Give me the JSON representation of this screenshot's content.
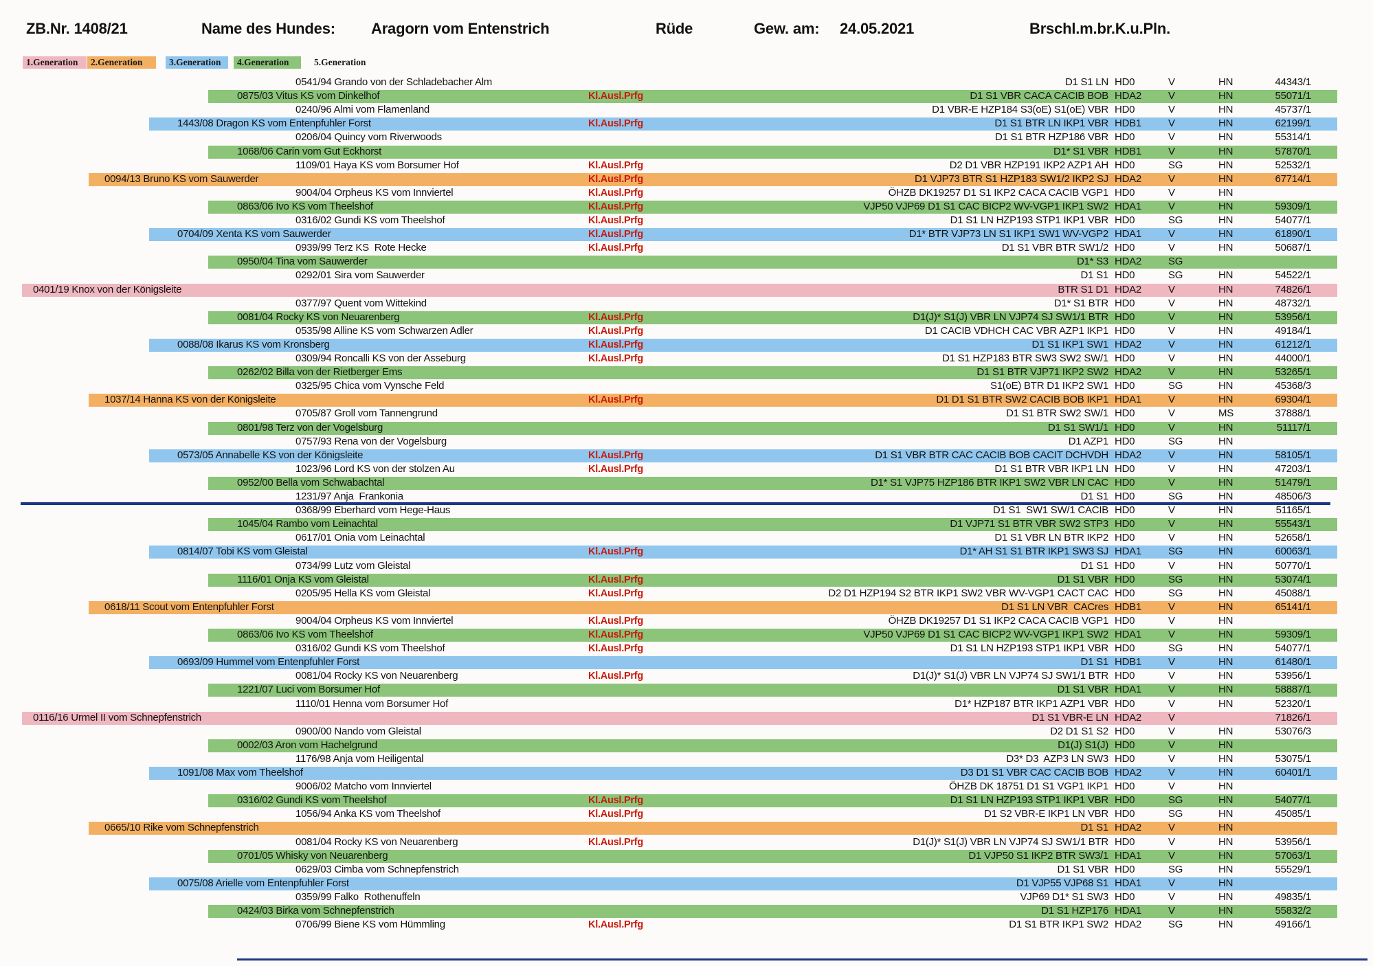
{
  "header": {
    "zb_number": "ZB.Nr. 1408/21",
    "name_label": "Name des Hundes:",
    "dog_name": "Aragorn vom Entenstrich",
    "sex": "Rüde",
    "birth_label": "Gew. am:",
    "birth_date": "24.05.2021",
    "coat_code": "Brschl.m.br.K.u.Pln."
  },
  "legend": [
    {
      "label": "1.Generation",
      "color": "#efb7c0"
    },
    {
      "label": "2.Generation",
      "color": "#f3b063"
    },
    {
      "label": "3.Generation",
      "color": "#90c6ee"
    },
    {
      "label": "4.Generation",
      "color": "#8cc47a"
    },
    {
      "label": "5.Generation",
      "color": "transparent"
    }
  ],
  "generation_colors": {
    "1": "#efb7c0",
    "2": "#f3b063",
    "3": "#90c6ee",
    "4": "#8cc47a"
  },
  "ausland_label": "Kl.Ausl.Prfg",
  "rows": [
    {
      "gen": 5,
      "name": "0541/94 Grando von der Schladebacher Alm",
      "kap": false,
      "scores": "D1 S1 LN",
      "hd": "HD0",
      "rating": "V",
      "registry": "HN",
      "number": "44343/1"
    },
    {
      "gen": 4,
      "name": "0875/03 Vitus KS vom Dinkelhof",
      "kap": true,
      "scores": "D1 S1 VBR CACA CACIB BOB",
      "hd": "HDA2",
      "rating": "V",
      "registry": "HN",
      "number": "55071/1"
    },
    {
      "gen": 5,
      "name": "0240/96 Almi vom Flamenland",
      "kap": false,
      "scores": "D1 VBR-E HZP184 S3(oE) S1(oE) VBR",
      "hd": "HD0",
      "rating": "V",
      "registry": "HN",
      "number": "45737/1"
    },
    {
      "gen": 3,
      "name": "1443/08 Dragon KS vom Entenpfuhler Forst",
      "kap": true,
      "scores": "D1 S1 BTR LN IKP1 VBR",
      "hd": "HDB1",
      "rating": "V",
      "registry": "HN",
      "number": "62199/1"
    },
    {
      "gen": 5,
      "name": "0206/04 Quincy vom Riverwoods",
      "kap": false,
      "scores": "D1 S1 BTR HZP186 VBR",
      "hd": "HD0",
      "rating": "V",
      "registry": "HN",
      "number": "55314/1"
    },
    {
      "gen": 4,
      "name": "1068/06 Carin vom Gut Eckhorst",
      "kap": false,
      "scores": "D1* S1 VBR",
      "hd": "HDB1",
      "rating": "V",
      "registry": "HN",
      "number": "57870/1"
    },
    {
      "gen": 5,
      "name": "1109/01 Haya KS vom Borsumer Hof",
      "kap": true,
      "scores": "D2 D1 VBR HZP191 IKP2 AZP1 AH",
      "hd": "HD0",
      "rating": "SG",
      "registry": "HN",
      "number": "52532/1"
    },
    {
      "gen": 2,
      "name": "0094/13 Bruno KS vom Sauwerder",
      "kap": true,
      "scores": "D1 VJP73 BTR S1 HZP183 SW1/2 IKP2 SJ",
      "hd": "HDA2",
      "rating": "V",
      "registry": "HN",
      "number": "67714/1"
    },
    {
      "gen": 5,
      "name": "9004/04 Orpheus KS vom Innviertel",
      "kap": true,
      "scores": "ÖHZB DK19257 D1 S1 IKP2 CACA CACIB VGP1",
      "hd": "HD0",
      "rating": "V",
      "registry": "HN",
      "number": ""
    },
    {
      "gen": 4,
      "name": "0863/06 Ivo KS vom Theelshof",
      "kap": true,
      "scores": "VJP50 VJP69 D1 S1 CAC BICP2 WV-VGP1 IKP1 SW2",
      "hd": "HDA1",
      "rating": "V",
      "registry": "HN",
      "number": "59309/1"
    },
    {
      "gen": 5,
      "name": "0316/02 Gundi KS vom Theelshof",
      "kap": true,
      "scores": "D1 S1 LN HZP193 STP1 IKP1 VBR",
      "hd": "HD0",
      "rating": "SG",
      "registry": "HN",
      "number": "54077/1"
    },
    {
      "gen": 3,
      "name": "0704/09 Xenta KS vom Sauwerder",
      "kap": true,
      "scores": "D1* BTR VJP73 LN S1 IKP1 SW1 WV-VGP2",
      "hd": "HDA1",
      "rating": "V",
      "registry": "HN",
      "number": "61890/1"
    },
    {
      "gen": 5,
      "name": "0939/99 Terz KS  Rote Hecke",
      "kap": true,
      "scores": "D1 S1 VBR BTR SW1/2",
      "hd": "HD0",
      "rating": "V",
      "registry": "HN",
      "number": "50687/1"
    },
    {
      "gen": 4,
      "name": "0950/04 Tina vom Sauwerder",
      "kap": false,
      "scores": "D1* S3",
      "hd": "HDA2",
      "rating": "SG",
      "registry": "",
      "number": ""
    },
    {
      "gen": 5,
      "name": "0292/01 Sira vom Sauwerder",
      "kap": false,
      "scores": "D1 S1",
      "hd": "HD0",
      "rating": "SG",
      "registry": "HN",
      "number": "54522/1"
    },
    {
      "gen": 1,
      "name": "0401/19 Knox von der Königsleite",
      "kap": false,
      "scores": "BTR S1 D1",
      "hd": "HDA2",
      "rating": "V",
      "registry": "HN",
      "number": "74826/1"
    },
    {
      "gen": 5,
      "name": "0377/97 Quent vom Wittekind",
      "kap": false,
      "scores": "D1* S1 BTR",
      "hd": "HD0",
      "rating": "V",
      "registry": "HN",
      "number": "48732/1"
    },
    {
      "gen": 4,
      "name": "0081/04 Rocky KS von Neuarenberg",
      "kap": true,
      "scores": "D1(J)* S1(J) VBR LN VJP74 SJ SW1/1 BTR",
      "hd": "HD0",
      "rating": "V",
      "registry": "HN",
      "number": "53956/1"
    },
    {
      "gen": 5,
      "name": "0535/98 Alline KS vom Schwarzen Adler",
      "kap": true,
      "scores": "D1 CACIB VDHCH CAC VBR AZP1 IKP1",
      "hd": "HD0",
      "rating": "V",
      "registry": "HN",
      "number": "49184/1"
    },
    {
      "gen": 3,
      "name": "0088/08 Ikarus KS vom Kronsberg",
      "kap": true,
      "scores": "D1 S1 IKP1 SW1",
      "hd": "HDA2",
      "rating": "V",
      "registry": "HN",
      "number": "61212/1"
    },
    {
      "gen": 5,
      "name": "0309/94 Roncalli KS von der Asseburg",
      "kap": true,
      "scores": "D1 S1 HZP183 BTR SW3 SW2 SW/1",
      "hd": "HD0",
      "rating": "V",
      "registry": "HN",
      "number": "44000/1"
    },
    {
      "gen": 4,
      "name": "0262/02 Billa von der Rietberger Ems",
      "kap": false,
      "scores": "D1 S1 BTR VJP71 IKP2 SW2",
      "hd": "HDA2",
      "rating": "V",
      "registry": "HN",
      "number": "53265/1"
    },
    {
      "gen": 5,
      "name": "0325/95 Chica vom Vynsche Feld",
      "kap": false,
      "scores": "S1(oE) BTR D1 IKP2 SW1",
      "hd": "HD0",
      "rating": "SG",
      "registry": "HN",
      "number": "45368/3"
    },
    {
      "gen": 2,
      "name": "1037/14 Hanna KS von der Königsleite",
      "kap": true,
      "scores": "D1 D1 S1 BTR SW2 CACIB BOB IKP1",
      "hd": "HDA1",
      "rating": "V",
      "registry": "HN",
      "number": "69304/1"
    },
    {
      "gen": 5,
      "name": "0705/87 Groll vom Tannengrund",
      "kap": false,
      "scores": "D1 S1 BTR SW2 SW/1",
      "hd": "HD0",
      "rating": "V",
      "registry": "MS",
      "number": "37888/1"
    },
    {
      "gen": 4,
      "name": "0801/98 Terz von der Vogelsburg",
      "kap": false,
      "scores": "D1 S1 SW1/1",
      "hd": "HD0",
      "rating": "V",
      "registry": "HN",
      "number": "51117/1"
    },
    {
      "gen": 5,
      "name": "0757/93 Rena von der Vogelsburg",
      "kap": false,
      "scores": "D1 AZP1",
      "hd": "HD0",
      "rating": "SG",
      "registry": "HN",
      "number": ""
    },
    {
      "gen": 3,
      "name": "0573/05 Annabelle KS von der Königsleite",
      "kap": true,
      "scores": "D1 S1 VBR BTR CAC CACIB BOB CACIT DCHVDH",
      "hd": "HDA2",
      "rating": "V",
      "registry": "HN",
      "number": "58105/1"
    },
    {
      "gen": 5,
      "name": "1023/96 Lord KS von der stolzen Au",
      "kap": true,
      "scores": "D1 S1 BTR VBR IKP1 LN",
      "hd": "HD0",
      "rating": "V",
      "registry": "HN",
      "number": "47203/1"
    },
    {
      "gen": 4,
      "name": "0952/00 Bella vom Schwabachtal",
      "kap": false,
      "scores": "D1* S1 VJP75 HZP186 BTR IKP1 SW2 VBR LN CAC",
      "hd": "HD0",
      "rating": "V",
      "registry": "HN",
      "number": "51479/1"
    },
    {
      "gen": 5,
      "name": "1231/97 Anja  Frankonia",
      "kap": false,
      "scores": "D1 S1",
      "hd": "HD0",
      "rating": "SG",
      "registry": "HN",
      "number": "48506/3"
    },
    {
      "gen": 5,
      "name": "0368/99 Eberhard vom Hege-Haus",
      "kap": false,
      "scores": "D1 S1  SW1 SW/1 CACIB",
      "hd": "HD0",
      "rating": "V",
      "registry": "HN",
      "number": "51165/1"
    },
    {
      "gen": 4,
      "name": "1045/04 Rambo vom Leinachtal",
      "kap": false,
      "scores": "D1 VJP71 S1 BTR VBR SW2 STP3",
      "hd": "HD0",
      "rating": "V",
      "registry": "HN",
      "number": "55543/1"
    },
    {
      "gen": 5,
      "name": "0617/01 Onia vom Leinachtal",
      "kap": false,
      "scores": "D1 S1 VBR LN BTR IKP2",
      "hd": "HD0",
      "rating": "V",
      "registry": "HN",
      "number": "52658/1"
    },
    {
      "gen": 3,
      "name": "0814/07 Tobi KS vom Gleistal",
      "kap": true,
      "scores": "D1* AH S1 S1 BTR IKP1 SW3 SJ",
      "hd": "HDA1",
      "rating": "SG",
      "registry": "HN",
      "number": "60063/1"
    },
    {
      "gen": 5,
      "name": "0734/99 Lutz vom Gleistal",
      "kap": false,
      "scores": "D1 S1",
      "hd": "HD0",
      "rating": "V",
      "registry": "HN",
      "number": "50770/1"
    },
    {
      "gen": 4,
      "name": "1116/01 Onja KS vom Gleistal",
      "kap": true,
      "scores": "D1 S1 VBR",
      "hd": "HD0",
      "rating": "SG",
      "registry": "HN",
      "number": "53074/1"
    },
    {
      "gen": 5,
      "name": "0205/95 Hella KS vom Gleistal",
      "kap": true,
      "scores": "D2 D1 HZP194 S2 BTR IKP1 SW2 VBR WV-VGP1 CACT CAC",
      "hd": "HD0",
      "rating": "SG",
      "registry": "HN",
      "number": "45088/1"
    },
    {
      "gen": 2,
      "name": "0618/11 Scout vom Entenpfuhler Forst",
      "kap": false,
      "scores": "D1 S1 LN VBR  CACres",
      "hd": "HDB1",
      "rating": "V",
      "registry": "HN",
      "number": "65141/1"
    },
    {
      "gen": 5,
      "name": "9004/04 Orpheus KS vom Innviertel",
      "kap": true,
      "scores": "ÖHZB DK19257 D1 S1 IKP2 CACA CACIB VGP1",
      "hd": "HD0",
      "rating": "V",
      "registry": "HN",
      "number": ""
    },
    {
      "gen": 4,
      "name": "0863/06 Ivo KS vom Theelshof",
      "kap": true,
      "scores": "VJP50 VJP69 D1 S1 CAC BICP2 WV-VGP1 IKP1 SW2",
      "hd": "HDA1",
      "rating": "V",
      "registry": "HN",
      "number": "59309/1"
    },
    {
      "gen": 5,
      "name": "0316/02 Gundi KS vom Theelshof",
      "kap": true,
      "scores": "D1 S1 LN HZP193 STP1 IKP1 VBR",
      "hd": "HD0",
      "rating": "SG",
      "registry": "HN",
      "number": "54077/1"
    },
    {
      "gen": 3,
      "name": "0693/09 Hummel vom Entenpfuhler Forst",
      "kap": false,
      "scores": "D1 S1",
      "hd": "HDB1",
      "rating": "V",
      "registry": "HN",
      "number": "61480/1"
    },
    {
      "gen": 5,
      "name": "0081/04 Rocky KS von Neuarenberg",
      "kap": true,
      "scores": "D1(J)* S1(J) VBR LN VJP74 SJ SW1/1 BTR",
      "hd": "HD0",
      "rating": "V",
      "registry": "HN",
      "number": "53956/1"
    },
    {
      "gen": 4,
      "name": "1221/07 Luci vom Borsumer Hof",
      "kap": false,
      "scores": "D1 S1 VBR",
      "hd": "HDA1",
      "rating": "V",
      "registry": "HN",
      "number": "58887/1"
    },
    {
      "gen": 5,
      "name": "1110/01 Henna vom Borsumer Hof",
      "kap": false,
      "scores": "D1* HZP187 BTR IKP1 AZP1 VBR",
      "hd": "HD0",
      "rating": "V",
      "registry": "HN",
      "number": "52320/1"
    },
    {
      "gen": 1,
      "name": "0116/16 Urmel II vom Schnepfenstrich",
      "kap": false,
      "scores": "D1 S1 VBR-E LN",
      "hd": "HDA2",
      "rating": "V",
      "registry": "",
      "number": "71826/1"
    },
    {
      "gen": 5,
      "name": "0900/00 Nando vom Gleistal",
      "kap": false,
      "scores": "D2 D1 S1 S2",
      "hd": "HD0",
      "rating": "V",
      "registry": "HN",
      "number": "53076/3"
    },
    {
      "gen": 4,
      "name": "0002/03 Aron vom Hachelgrund",
      "kap": false,
      "scores": "D1(J) S1(J)",
      "hd": "HD0",
      "rating": "V",
      "registry": "HN",
      "number": ""
    },
    {
      "gen": 5,
      "name": "1176/98 Anja vom Heiligental",
      "kap": false,
      "scores": "D3* D3  AZP3 LN SW3",
      "hd": "HD0",
      "rating": "V",
      "registry": "HN",
      "number": "53075/1"
    },
    {
      "gen": 3,
      "name": "1091/08 Max vom Theelshof",
      "kap": false,
      "scores": "D3 D1 S1 VBR CAC CACIB BOB",
      "hd": "HDA2",
      "rating": "V",
      "registry": "HN",
      "number": "60401/1"
    },
    {
      "gen": 5,
      "name": "9006/02 Matcho vom Innviertel",
      "kap": false,
      "scores": "ÖHZB DK 18751 D1 S1 VGP1 IKP1",
      "hd": "HD0",
      "rating": "V",
      "registry": "HN",
      "number": ""
    },
    {
      "gen": 4,
      "name": "0316/02 Gundi KS vom Theelshof",
      "kap": true,
      "scores": "D1 S1 LN HZP193 STP1 IKP1 VBR",
      "hd": "HD0",
      "rating": "SG",
      "registry": "HN",
      "number": "54077/1"
    },
    {
      "gen": 5,
      "name": "1056/94 Anka KS vom Theelshof",
      "kap": true,
      "scores": "D1 S2 VBR-E IKP1 LN VBR",
      "hd": "HD0",
      "rating": "SG",
      "registry": "HN",
      "number": "45085/1"
    },
    {
      "gen": 2,
      "name": "0665/10 Rike vom Schnepfenstrich",
      "kap": false,
      "scores": "D1 S1",
      "hd": "HDA2",
      "rating": "V",
      "registry": "HN",
      "number": ""
    },
    {
      "gen": 5,
      "name": "0081/04 Rocky KS von Neuarenberg",
      "kap": true,
      "scores": "D1(J)* S1(J) VBR LN VJP74 SJ SW1/1 BTR",
      "hd": "HD0",
      "rating": "V",
      "registry": "HN",
      "number": "53956/1"
    },
    {
      "gen": 4,
      "name": "0701/05 Whisky von Neuarenberg",
      "kap": false,
      "scores": "D1 VJP50 S1 IKP2 BTR SW3/1",
      "hd": "HDA1",
      "rating": "V",
      "registry": "HN",
      "number": "57063/1"
    },
    {
      "gen": 5,
      "name": "0629/03 Cimba vom Schnepfenstrich",
      "kap": false,
      "scores": "D1 S1 VBR",
      "hd": "HD0",
      "rating": "SG",
      "registry": "HN",
      "number": "55529/1"
    },
    {
      "gen": 3,
      "name": "0075/08 Arielle vom Entenpfuhler Forst",
      "kap": false,
      "scores": "D1 VJP55 VJP68 S1",
      "hd": "HDA1",
      "rating": "V",
      "registry": "HN",
      "number": ""
    },
    {
      "gen": 5,
      "name": "0359/99 Falko  Rothenuffeln",
      "kap": false,
      "scores": "VJP69 D1* S1 SW3",
      "hd": "HD0",
      "rating": "V",
      "registry": "HN",
      "number": "49835/1"
    },
    {
      "gen": 4,
      "name": "0424/03 Birka vom Schnepfenstrich",
      "kap": false,
      "scores": "D1 S1 HZP176",
      "hd": "HDA1",
      "rating": "V",
      "registry": "HN",
      "number": "55832/2"
    },
    {
      "gen": 5,
      "name": "0706/99 Biene KS vom Hümmling",
      "kap": true,
      "scores": "D1 S1 BTR IKP1 SW2",
      "hd": "HDA2",
      "rating": "SG",
      "registry": "HN",
      "number": "49166/1"
    }
  ]
}
